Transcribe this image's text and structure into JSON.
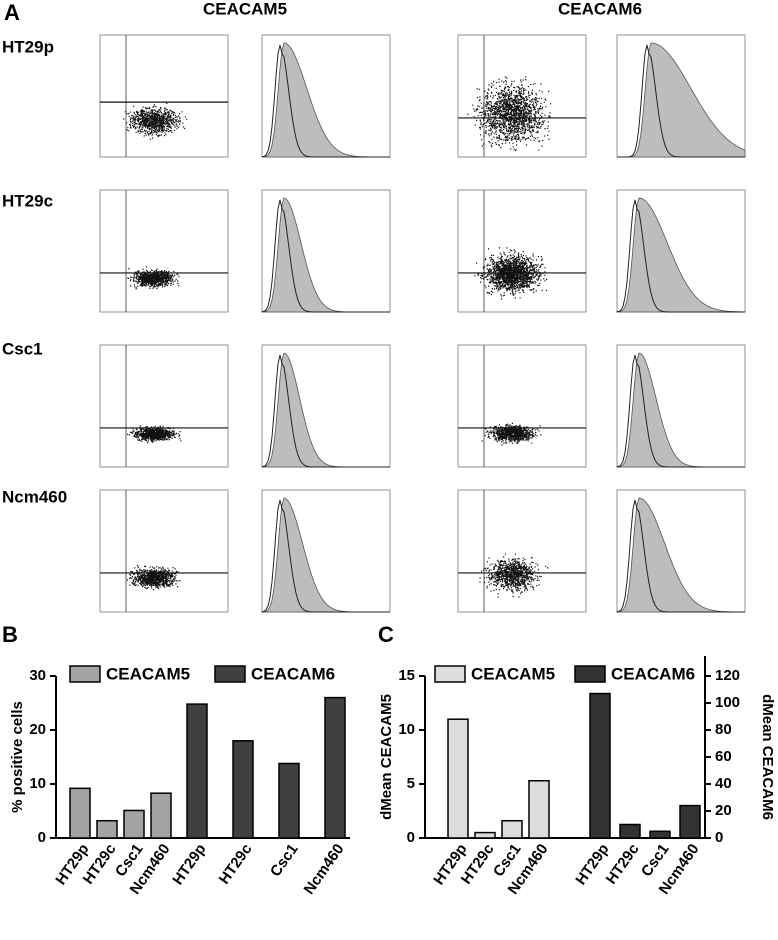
{
  "panel_a": {
    "label": "A",
    "columns": [
      "CEACAM5",
      "CEACAM6"
    ],
    "rows": [
      "HT29p",
      "HT29c",
      "Csc1",
      "Ncm460"
    ]
  },
  "chart_data": [
    {
      "type": "bar",
      "panel_label": "B",
      "y_label": "% positive cells",
      "categories": [
        "HT29p",
        "HT29c",
        "Csc1",
        "Ncm460"
      ],
      "series": [
        {
          "name": "CEACAM5",
          "color": "#a3a3a3",
          "values": [
            9.2,
            3.2,
            5.1,
            8.3
          ]
        },
        {
          "name": "CEACAM6",
          "color": "#404040",
          "values": [
            24.8,
            18,
            13.8,
            26
          ]
        }
      ],
      "ylim": [
        0,
        30
      ],
      "yticks": [
        0,
        10,
        20,
        30
      ],
      "legend": "top"
    },
    {
      "type": "bar",
      "panel_label": "C",
      "y_label": "dMean CEACAM5",
      "y2_label": "dMean CEACAM6",
      "categories": [
        "HT29p",
        "HT29c",
        "Csc1",
        "Ncm460"
      ],
      "series": [
        {
          "name": "CEACAM5",
          "color": "#dcdcdc",
          "values": [
            11,
            0.5,
            1.6,
            5.3
          ]
        },
        {
          "name": "CEACAM6",
          "color": "#333333",
          "axis": "y2",
          "values": [
            107,
            10,
            5,
            24
          ]
        }
      ],
      "ylim": [
        0,
        15
      ],
      "yticks": [
        0,
        5,
        10,
        15
      ],
      "y2lim": [
        0,
        120
      ],
      "y2ticks": [
        0,
        20,
        40,
        60,
        80,
        100,
        120
      ],
      "legend": "top"
    }
  ]
}
